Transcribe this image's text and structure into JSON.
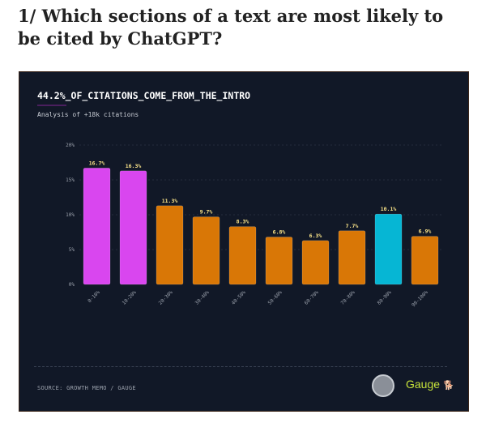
{
  "title": "1/ Which sections of a text are most likely to be cited by ChatGPT?",
  "chart_data": {
    "type": "bar",
    "title": "44.2%_OF_CITATIONS_COME_FROM_THE_INTRO",
    "subtitle": "Analysis of +18k citations",
    "categories": [
      "0-10%",
      "10-20%",
      "20-30%",
      "30-40%",
      "40-50%",
      "50-60%",
      "60-70%",
      "70-80%",
      "80-90%",
      "90-100%"
    ],
    "values": [
      16.7,
      16.3,
      11.3,
      9.7,
      8.3,
      6.8,
      6.3,
      7.7,
      10.1,
      6.9
    ],
    "data_labels": [
      "16.7%",
      "16.3%",
      "11.3%",
      "9.7%",
      "8.3%",
      "6.8%",
      "6.3%",
      "7.7%",
      "10.1%",
      "6.9%"
    ],
    "colors": [
      "#d946ef",
      "#d946ef",
      "#d97706",
      "#d97706",
      "#d97706",
      "#d97706",
      "#d97706",
      "#d97706",
      "#06b6d4",
      "#d97706"
    ],
    "ylim": [
      0,
      20
    ],
    "yticks": [
      "0%",
      "5%",
      "10%",
      "15%",
      "20%"
    ],
    "grid": true,
    "source": "SOURCE: GROWTH MEMO / GAUGE",
    "brand": "Gauge"
  }
}
